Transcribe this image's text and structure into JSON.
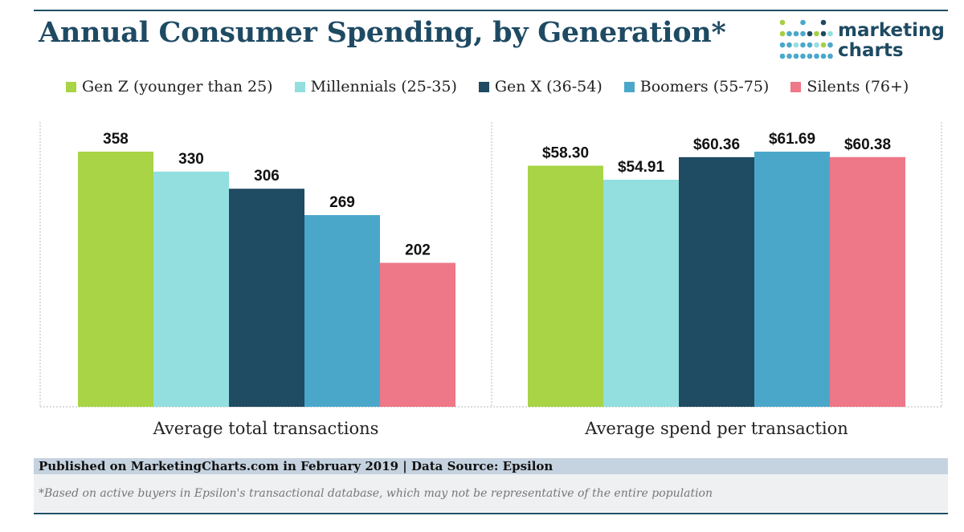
{
  "title": "Annual Consumer Spending, by Generation*",
  "logo": {
    "line1": "marketing",
    "line2": "charts",
    "dot_colors": [
      "#a6cf45",
      "#4aa8cb",
      "#1e4a63",
      "#96dedf"
    ]
  },
  "colors": {
    "gen_z": "#a8d446",
    "millennials": "#93dedf",
    "gen_x": "#1f4b63",
    "boomers": "#4ba7ca",
    "silents": "#ee7788",
    "title": "#1e4a63",
    "footer_band": "#c5d2df"
  },
  "chart_data": [
    {
      "type": "bar",
      "facet": "Average total transactions",
      "series": [
        {
          "name": "Gen Z (younger than 25)",
          "value": 358,
          "label": "358"
        },
        {
          "name": "Millennials (25-35)",
          "value": 330,
          "label": "330"
        },
        {
          "name": "Gen X (36-54)",
          "value": 306,
          "label": "306"
        },
        {
          "name": "Boomers (55-75)",
          "value": 269,
          "label": "269"
        },
        {
          "name": "Silents (76+)",
          "value": 202,
          "label": "202"
        }
      ],
      "ylim": [
        0,
        358
      ],
      "grid": false,
      "legend": "top"
    },
    {
      "type": "bar",
      "facet": "Average spend per transaction",
      "series": [
        {
          "name": "Gen Z (younger than 25)",
          "value": 58.3,
          "label": "$58.30"
        },
        {
          "name": "Millennials (25-35)",
          "value": 54.91,
          "label": "$54.91"
        },
        {
          "name": "Gen X (36-54)",
          "value": 60.36,
          "label": "$60.36"
        },
        {
          "name": "Boomers (55-75)",
          "value": 61.69,
          "label": "$61.69"
        },
        {
          "name": "Silents (76+)",
          "value": 60.38,
          "label": "$60.38"
        }
      ],
      "ylim": [
        0,
        61.69
      ],
      "grid": false,
      "legend": "top"
    }
  ],
  "legend": [
    {
      "label": "Gen Z (younger than 25)",
      "color": "#a8d446"
    },
    {
      "label": "Millennials (25-35)",
      "color": "#93dedf"
    },
    {
      "label": "Gen X (36-54)",
      "color": "#1f4b63"
    },
    {
      "label": "Boomers (55-75)",
      "color": "#4ba7ca"
    },
    {
      "label": "Silents (76+)",
      "color": "#ee7788"
    }
  ],
  "footer": {
    "published": "Published on MarketingCharts.com in February 2019 | Data Source: Epsilon",
    "note": "*Based on active buyers in Epsilon's transactional database, which may not be representative of the entire population"
  }
}
